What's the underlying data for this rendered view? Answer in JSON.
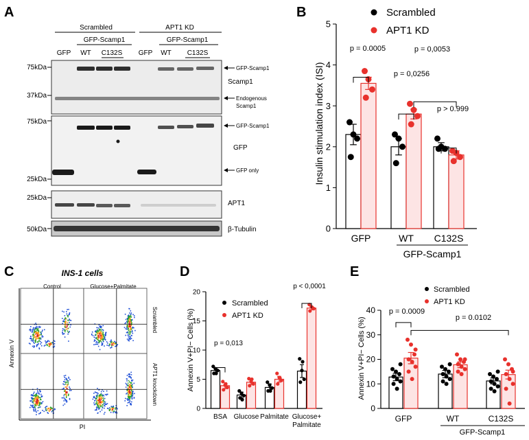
{
  "panels": {
    "A": "A",
    "B": "B",
    "C": "C",
    "D": "D",
    "E": "E"
  },
  "panel_a": {
    "groups": [
      {
        "label": "Scrambled"
      },
      {
        "label": "APT1 KD"
      }
    ],
    "construct": "GFP-Scamp1",
    "lane_labels": [
      "GFP",
      "WT",
      "C132S",
      "GFP",
      "WT",
      "C132S"
    ],
    "mw_markers": [
      "75kDa",
      "37kDa",
      "75kDa",
      "25kDa",
      "25kDa",
      "50kDa"
    ],
    "right_labels": {
      "blot1_arrow1": "GFP-Scamp1",
      "blot1_name": "Scamp1",
      "blot1_arrow2_line1": "Endogenous",
      "blot1_arrow2_line2": "Scamp1",
      "blot2_arrow1": "GFP-Scamp1",
      "blot2_name": "GFP",
      "blot2_arrow2": "GFP only",
      "blot3_name": "APT1",
      "blot4_name": "β-Tubulin"
    }
  },
  "panel_c": {
    "title": "INS-1 cells",
    "col_labels": [
      "Control",
      "Glucose+Palmitate"
    ],
    "row_labels": [
      "Scrambled",
      "APT1 knockdown"
    ],
    "ylabel": "Annexin V",
    "xlabel": "PI"
  },
  "chart_data": [
    {
      "id": "B",
      "type": "bar",
      "ylabel": "Insulin stimulation index (ISI)",
      "ylim": [
        0,
        5
      ],
      "yticks": [
        "0",
        "1",
        "2",
        "3",
        "4",
        "5"
      ],
      "categories": [
        "GFP",
        "WT",
        "C132S"
      ],
      "group_label": "GFP-Scamp1",
      "legend": [
        {
          "name": "Scrambled",
          "color": "#000000"
        },
        {
          "name": "APT1 KD",
          "color": "#e8312c"
        }
      ],
      "series": [
        {
          "name": "Scrambled",
          "values": [
            2.3,
            2.0,
            2.0
          ],
          "errors": [
            0.25,
            0.2,
            0.1
          ],
          "points": [
            [
              2.6,
              2.3,
              2.2,
              1.75
            ],
            [
              2.3,
              2.2,
              2.0,
              1.6
            ],
            [
              2.2,
              2.0,
              1.95,
              1.95
            ]
          ]
        },
        {
          "name": "APT1 KD",
          "values": [
            3.55,
            2.8,
            1.8
          ],
          "errors": [
            0.15,
            0.12,
            0.1
          ],
          "points": [
            [
              3.85,
              3.65,
              3.4,
              3.2
            ],
            [
              3.05,
              2.9,
              2.75,
              2.55
            ],
            [
              1.9,
              1.85,
              1.75,
              1.65
            ]
          ]
        }
      ],
      "annotations": [
        {
          "text": "p = 0.0005",
          "y": 3.9
        },
        {
          "text": "p = 0,0256",
          "y": 3.0
        },
        {
          "text": "p = 0,0053",
          "y": 3.3
        },
        {
          "text": "p > 0.999",
          "y": 2.15
        }
      ]
    },
    {
      "id": "D",
      "type": "bar",
      "ylabel": "Annexin V+PI− Cells (%)",
      "ylim": [
        0,
        20
      ],
      "yticks": [
        "0",
        "5",
        "10",
        "15",
        "20"
      ],
      "categories": [
        "BSA",
        "Glucose",
        "Palmitate",
        "Glucose+ Palmitate"
      ],
      "category_lines": [
        [
          "BSA"
        ],
        [
          "Glucose"
        ],
        [
          "Palmitate"
        ],
        [
          "Glucose+",
          "Palmitate"
        ]
      ],
      "legend": [
        {
          "name": "Scrambled",
          "color": "#000000"
        },
        {
          "name": "APT1 KD",
          "color": "#e8312c"
        }
      ],
      "series": [
        {
          "name": "Scrambled",
          "values": [
            6.5,
            2.3,
            3.6,
            6.4
          ],
          "errors": [
            0.4,
            0.5,
            0.6,
            1.1
          ],
          "points": [
            [
              7.2,
              6.8,
              6.5,
              6.0,
              6.0
            ],
            [
              3.0,
              2.6,
              2.2,
              1.8,
              1.5
            ],
            [
              4.5,
              4.0,
              3.5,
              3.0,
              3.0
            ],
            [
              8.5,
              6.5,
              5.0,
              4.5,
              8.0
            ]
          ]
        },
        {
          "name": "APT1 KD",
          "values": [
            3.9,
            4.5,
            5.0,
            17.2
          ],
          "errors": [
            0.5,
            0.4,
            0.5,
            0.3
          ],
          "points": [
            [
              4.6,
              4.0,
              3.6,
              3.2,
              4.2
            ],
            [
              5.1,
              4.6,
              4.2,
              3.9,
              5.0
            ],
            [
              6.0,
              5.3,
              4.8,
              4.2,
              5.2
            ],
            [
              17.8,
              17.4,
              17.1,
              16.7,
              17.3
            ]
          ]
        }
      ],
      "annotations": [
        {
          "text": "p = 0,013",
          "y": 7.6
        },
        {
          "text": "p < 0,0001",
          "y": 18.8
        }
      ]
    },
    {
      "id": "E",
      "type": "bar",
      "ylabel": "Annexin V+PI− Cells (%)",
      "ylim": [
        0,
        40
      ],
      "yticks": [
        "0",
        "10",
        "20",
        "30",
        "40"
      ],
      "categories": [
        "GFP",
        "WT",
        "C132S"
      ],
      "group_label": "GFP-Scamp1",
      "legend": [
        {
          "name": "Scrambled",
          "color": "#000000"
        },
        {
          "name": "APT1 KD",
          "color": "#e8312c"
        }
      ],
      "series": [
        {
          "name": "Scrambled",
          "values": [
            12.8,
            14.0,
            11.2
          ],
          "errors": [
            1.5,
            1.5,
            1.2
          ],
          "points": [
            [
              16,
              15,
              14,
              13,
              12,
              11,
              10,
              8,
              18
            ],
            [
              17,
              16,
              15,
              14,
              13,
              12,
              11,
              10,
              18
            ],
            [
              14,
              13,
              12,
              11,
              10,
              9,
              8,
              7,
              15
            ]
          ]
        },
        {
          "name": "APT1 KD",
          "values": [
            20.5,
            17.8,
            13.8
          ],
          "errors": [
            2.3,
            1.2,
            1.8
          ],
          "points": [
            [
              28,
              26,
              22,
              20,
              19,
              17,
              15,
              12,
              24
            ],
            [
              22,
              20,
              19,
              18,
              17,
              16,
              15,
              14,
              20
            ],
            [
              20,
              18,
              16,
              14,
              12,
              10,
              8,
              2,
              15
            ]
          ]
        }
      ],
      "annotations": [
        {
          "text": "p = 0.0009",
          "y": 37.5
        },
        {
          "text": "p = 0.0102",
          "y": 34
        }
      ]
    }
  ]
}
